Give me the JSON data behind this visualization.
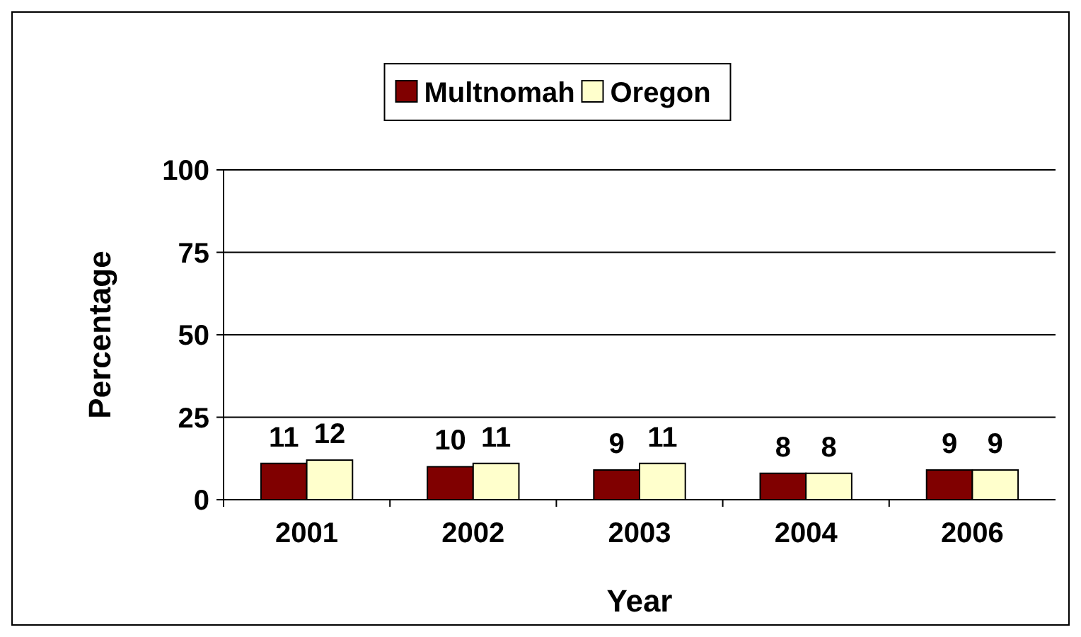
{
  "chart_data": {
    "type": "bar",
    "xlabel": "Year",
    "ylabel": "Percentage",
    "categories": [
      "2001",
      "2002",
      "2003",
      "2004",
      "2006"
    ],
    "series": [
      {
        "name": "Multnomah",
        "color": "#800000",
        "values": [
          11,
          10,
          9,
          8,
          9
        ]
      },
      {
        "name": "Oregon",
        "color": "#ffffcc",
        "values": [
          12,
          11,
          11,
          8,
          9
        ]
      }
    ],
    "ylim": [
      0,
      100
    ],
    "yticks": [
      0,
      25,
      50,
      75,
      100
    ],
    "grid": "y",
    "legend": "top",
    "data_labels": true
  }
}
